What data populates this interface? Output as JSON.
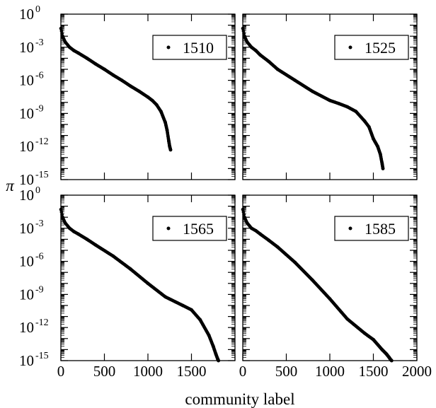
{
  "figure": {
    "xlabel": "community label",
    "ylabel": "π"
  },
  "chart_data": [
    {
      "type": "scatter",
      "panel": "top-left",
      "legend": {
        "label": "1510",
        "position": "top-right"
      },
      "xlim": [
        0,
        2000
      ],
      "ylim": [
        1e-15,
        1
      ],
      "yscale": "log",
      "grid": false,
      "y_tick_labels": [
        "10^0",
        "10^-3",
        "10^-6",
        "10^-9",
        "10^-12",
        "10^-15"
      ],
      "x_tick_labels": [],
      "series": [
        {
          "color": "#000000",
          "n_points": 1260,
          "x": [
            1,
            20,
            50,
            100,
            150,
            200,
            300,
            400,
            500,
            600,
            700,
            800,
            900,
            1000,
            1050,
            1100,
            1150,
            1200,
            1220,
            1240,
            1250,
            1260
          ],
          "y": [
            0.05,
            0.01,
            0.003,
            0.001,
            0.0005,
            0.0003,
            0.0001,
            3e-05,
            1e-05,
            3e-06,
            1e-06,
            3e-07,
            1e-07,
            3e-08,
            1.5e-08,
            6e-09,
            1.5e-09,
            1.5e-10,
            3e-11,
            3e-12,
            1e-12,
            5e-13
          ]
        }
      ]
    },
    {
      "type": "scatter",
      "panel": "top-right",
      "legend": {
        "label": "1525",
        "position": "top-right"
      },
      "xlim": [
        0,
        2000
      ],
      "ylim": [
        1e-15,
        1
      ],
      "yscale": "log",
      "grid": false,
      "y_tick_labels": [],
      "x_tick_labels": [],
      "series": [
        {
          "color": "#000000",
          "n_points": 1610,
          "x": [
            1,
            20,
            50,
            100,
            150,
            200,
            300,
            400,
            600,
            800,
            1000,
            1100,
            1200,
            1300,
            1400,
            1450,
            1500,
            1550,
            1580,
            1600,
            1610
          ],
          "y": [
            0.05,
            0.01,
            0.003,
            0.001,
            0.0005,
            0.0002,
            5e-05,
            1e-05,
            1e-06,
            1e-07,
            1.5e-08,
            8e-09,
            4e-09,
            1.5e-09,
            2e-10,
            6e-11,
            5e-12,
            1e-12,
            2e-13,
            3e-14,
            1e-14
          ]
        }
      ]
    },
    {
      "type": "scatter",
      "panel": "bottom-left",
      "legend": {
        "label": "1565",
        "position": "top-right"
      },
      "xlim": [
        0,
        2000
      ],
      "ylim": [
        1e-15,
        1
      ],
      "yscale": "log",
      "grid": false,
      "y_tick_labels": [
        "10^0",
        "10^-3",
        "10^-6",
        "10^-9",
        "10^-12",
        "10^-15"
      ],
      "x_tick_labels": [
        "0",
        "500",
        "1000",
        "1500"
      ],
      "series": [
        {
          "color": "#000000",
          "n_points": 1800,
          "x": [
            1,
            20,
            50,
            100,
            150,
            200,
            300,
            400,
            600,
            800,
            1000,
            1200,
            1400,
            1500,
            1600,
            1700,
            1750,
            1780,
            1800,
            1810
          ],
          "y": [
            0.05,
            0.01,
            0.003,
            0.001,
            0.0005,
            0.0003,
            0.0001,
            3e-05,
            3e-06,
            2e-07,
            1e-08,
            6e-10,
            1e-10,
            4e-11,
            5e-12,
            2e-13,
            2e-14,
            4e-15,
            1.5e-15,
            1e-15
          ]
        }
      ]
    },
    {
      "type": "scatter",
      "panel": "bottom-right",
      "legend": {
        "label": "1585",
        "position": "top-right"
      },
      "xlim": [
        0,
        2000
      ],
      "ylim": [
        1e-15,
        1
      ],
      "yscale": "log",
      "grid": false,
      "y_tick_labels": [],
      "x_tick_labels": [
        "0",
        "500",
        "1000",
        "1500",
        "2000"
      ],
      "series": [
        {
          "color": "#000000",
          "n_points": 1710,
          "x": [
            1,
            20,
            50,
            100,
            150,
            200,
            300,
            400,
            600,
            800,
            1000,
            1200,
            1400,
            1500,
            1600,
            1650,
            1680,
            1700,
            1710
          ],
          "y": [
            0.05,
            0.01,
            0.003,
            0.001,
            0.0006,
            0.0003,
            8e-05,
            2e-05,
            8e-07,
            2e-08,
            4e-10,
            6e-12,
            3e-13,
            8e-14,
            1e-14,
            4e-15,
            2e-15,
            1.2e-15,
            1e-15
          ]
        }
      ]
    }
  ]
}
